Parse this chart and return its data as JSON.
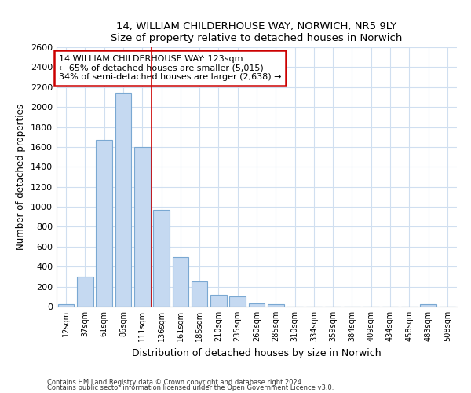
{
  "title1": "14, WILLIAM CHILDERHOUSE WAY, NORWICH, NR5 9LY",
  "title2": "Size of property relative to detached houses in Norwich",
  "xlabel": "Distribution of detached houses by size in Norwich",
  "ylabel": "Number of detached properties",
  "categories": [
    "12sqm",
    "37sqm",
    "61sqm",
    "86sqm",
    "111sqm",
    "136sqm",
    "161sqm",
    "185sqm",
    "210sqm",
    "235sqm",
    "260sqm",
    "285sqm",
    "310sqm",
    "334sqm",
    "359sqm",
    "384sqm",
    "409sqm",
    "434sqm",
    "458sqm",
    "483sqm",
    "508sqm"
  ],
  "values": [
    20,
    300,
    1670,
    2140,
    1600,
    970,
    500,
    250,
    120,
    100,
    30,
    25,
    0,
    0,
    0,
    0,
    0,
    0,
    0,
    20,
    0
  ],
  "bar_color": "#c5d9f1",
  "bar_edge_color": "#7aa8d2",
  "vline_x": 4.5,
  "vline_color": "#cc0000",
  "annotation_line1": "14 WILLIAM CHILDERHOUSE WAY: 123sqm",
  "annotation_line2": "← 65% of detached houses are smaller (5,015)",
  "annotation_line3": "34% of semi-detached houses are larger (2,638) →",
  "annotation_box_color": "#cc0000",
  "ylim": [
    0,
    2600
  ],
  "yticks": [
    0,
    200,
    400,
    600,
    800,
    1000,
    1200,
    1400,
    1600,
    1800,
    2000,
    2200,
    2400,
    2600
  ],
  "footnote1": "Contains HM Land Registry data © Crown copyright and database right 2024.",
  "footnote2": "Contains public sector information licensed under the Open Government Licence v3.0.",
  "bg_color": "#ffffff",
  "plot_bg_color": "#ffffff",
  "grid_color": "#d0dff0"
}
